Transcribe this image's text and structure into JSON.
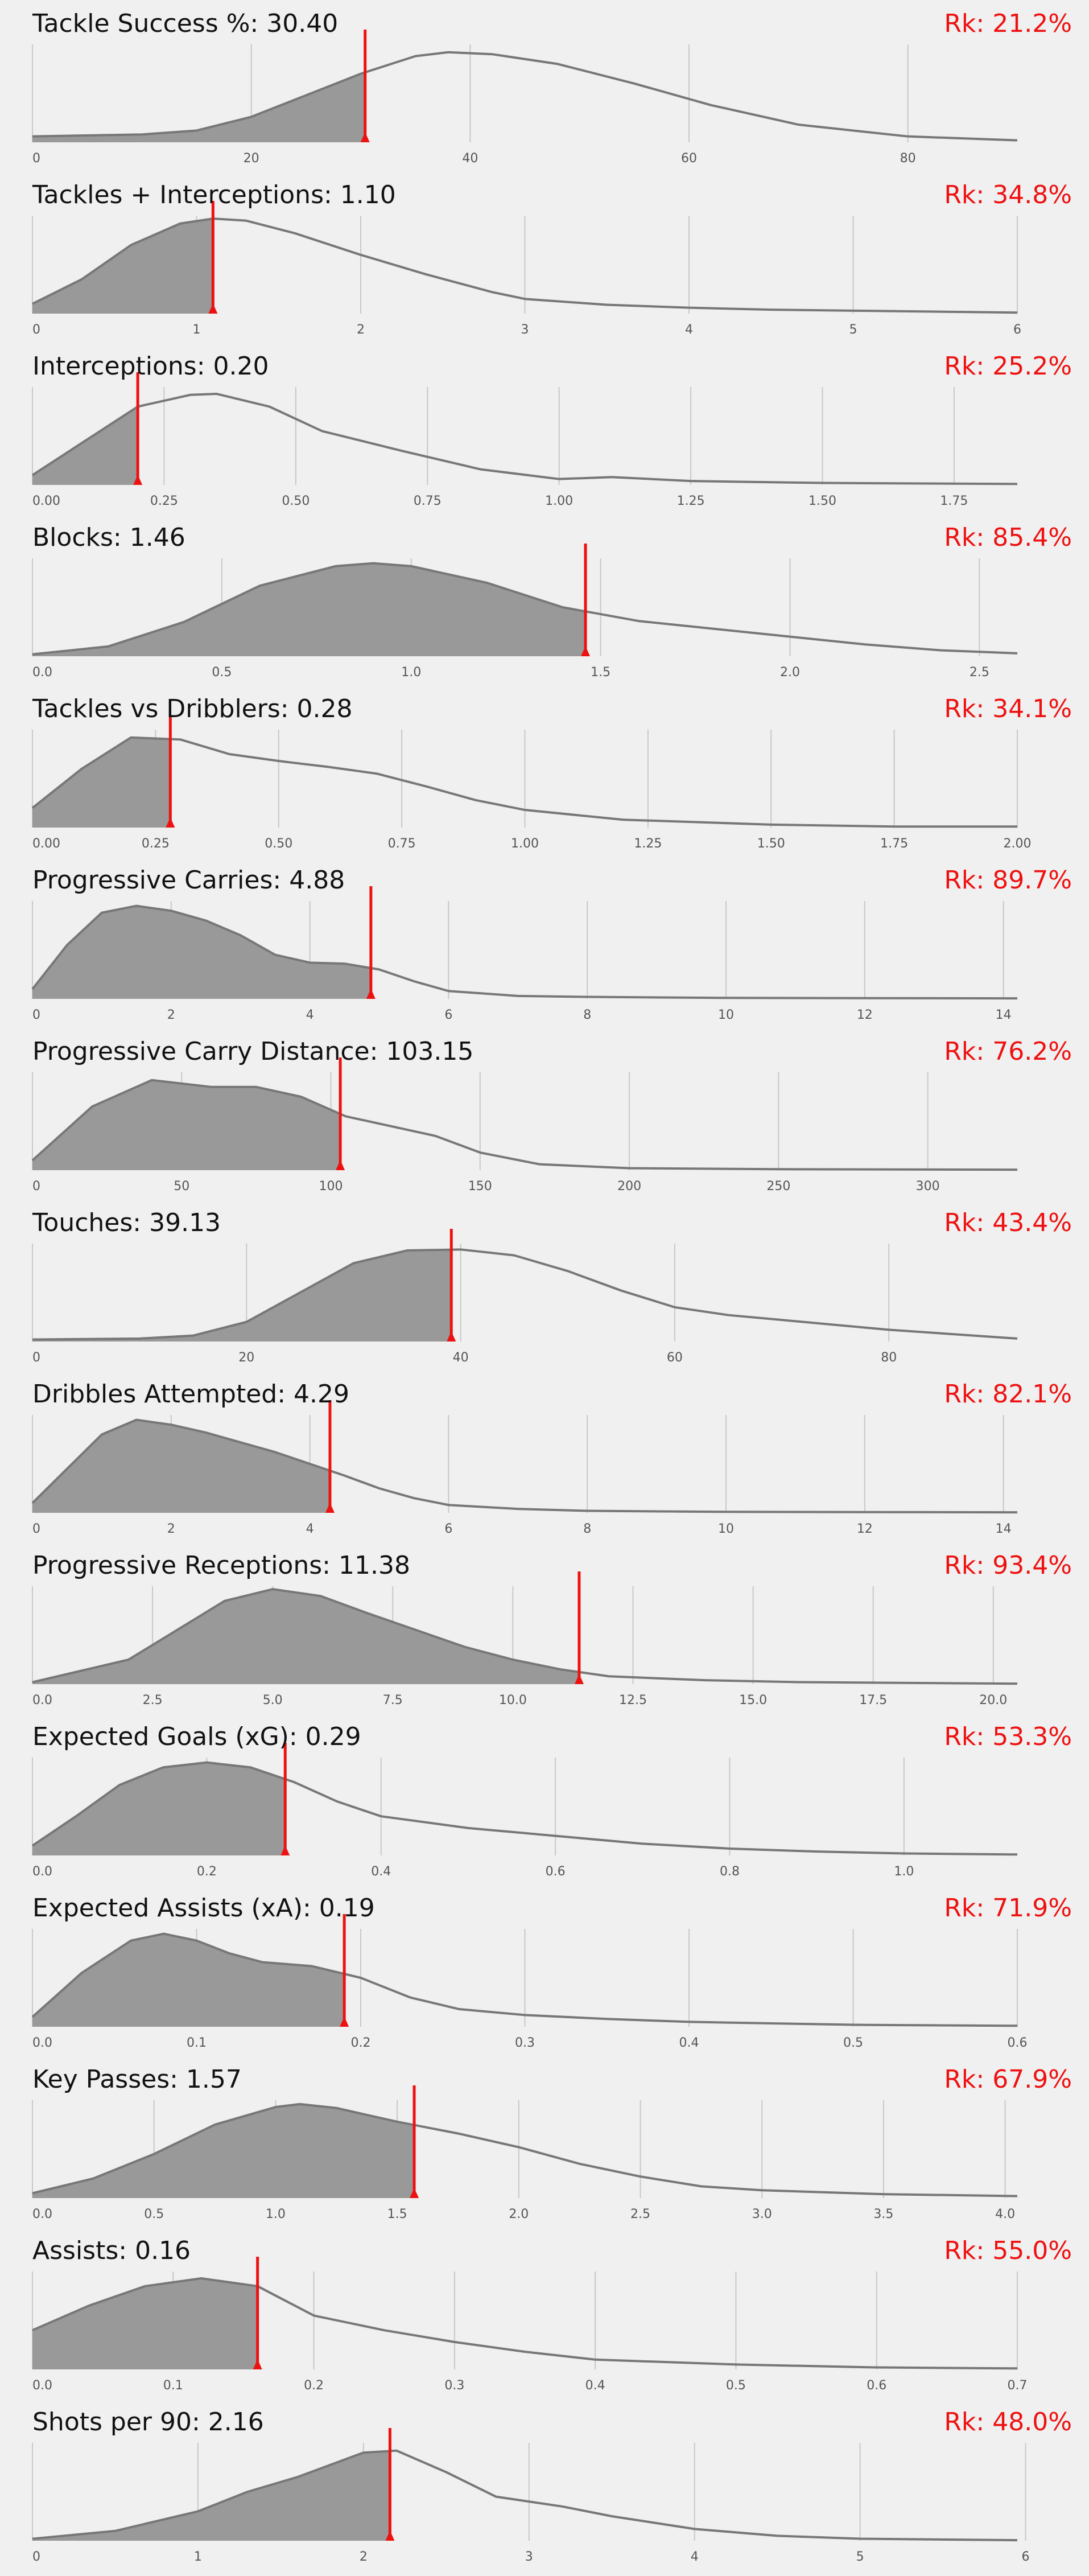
{
  "colors": {
    "background": "#f0f0f0",
    "fill": "#999999",
    "curve": "#777777",
    "grid": "#c8c8c8",
    "marker": "#ee1111",
    "text": "#111111",
    "tick": "#555555"
  },
  "chart_data": [
    {
      "type": "area",
      "title": "Tackle Success %: 30.40",
      "rank_label": "Rk: 21.2%",
      "value": 30.4,
      "xlim": [
        0,
        90
      ],
      "ticks": [
        0,
        20,
        40,
        60,
        80
      ],
      "tick_labels": [
        "0",
        "20",
        "40",
        "60",
        "80"
      ],
      "density": {
        "x": [
          0,
          10,
          15,
          20,
          25,
          30,
          35,
          38,
          42,
          48,
          55,
          62,
          70,
          80,
          90
        ],
        "y": [
          0.06,
          0.08,
          0.12,
          0.26,
          0.48,
          0.7,
          0.88,
          0.92,
          0.9,
          0.8,
          0.6,
          0.38,
          0.18,
          0.06,
          0.02
        ]
      }
    },
    {
      "type": "area",
      "title": "Tackles + Interceptions: 1.10",
      "rank_label": "Rk: 34.8%",
      "value": 1.1,
      "xlim": [
        0,
        6
      ],
      "ticks": [
        0,
        1,
        2,
        3,
        4,
        5,
        6
      ],
      "tick_labels": [
        "0",
        "1",
        "2",
        "3",
        "4",
        "5",
        "6"
      ],
      "density": {
        "x": [
          0,
          0.3,
          0.6,
          0.9,
          1.1,
          1.3,
          1.6,
          2.0,
          2.4,
          2.8,
          3.0,
          3.5,
          4.0,
          4.5,
          5.0,
          5.5,
          6.0
        ],
        "y": [
          0.1,
          0.35,
          0.7,
          0.92,
          0.97,
          0.95,
          0.82,
          0.6,
          0.4,
          0.22,
          0.15,
          0.09,
          0.06,
          0.04,
          0.03,
          0.02,
          0.01
        ]
      }
    },
    {
      "type": "area",
      "title": "Interceptions: 0.20",
      "rank_label": "Rk: 25.2%",
      "value": 0.2,
      "xlim": [
        0,
        1.87
      ],
      "ticks": [
        0,
        0.25,
        0.5,
        0.75,
        1.0,
        1.25,
        1.5,
        1.75
      ],
      "tick_labels": [
        "0.00",
        "0.25",
        "0.50",
        "0.75",
        "1.00",
        "1.25",
        "1.50",
        "1.75"
      ],
      "density": {
        "x": [
          0,
          0.1,
          0.2,
          0.3,
          0.35,
          0.45,
          0.55,
          0.7,
          0.85,
          1.0,
          1.1,
          1.25,
          1.5,
          1.87
        ],
        "y": [
          0.1,
          0.45,
          0.8,
          0.92,
          0.93,
          0.8,
          0.55,
          0.35,
          0.16,
          0.06,
          0.08,
          0.04,
          0.02,
          0.01
        ]
      }
    },
    {
      "type": "area",
      "title": "Blocks: 1.46",
      "rank_label": "Rk: 85.4%",
      "value": 1.46,
      "xlim": [
        0,
        2.6
      ],
      "ticks": [
        0,
        0.5,
        1.0,
        1.5,
        2.0,
        2.5
      ],
      "tick_labels": [
        "0.0",
        "0.5",
        "1.0",
        "1.5",
        "2.0",
        "2.5"
      ],
      "density": {
        "x": [
          0,
          0.2,
          0.4,
          0.6,
          0.8,
          0.9,
          1.0,
          1.2,
          1.4,
          1.6,
          1.8,
          2.0,
          2.2,
          2.4,
          2.6
        ],
        "y": [
          0.02,
          0.1,
          0.35,
          0.72,
          0.92,
          0.95,
          0.92,
          0.75,
          0.5,
          0.36,
          0.28,
          0.2,
          0.12,
          0.06,
          0.03
        ]
      }
    },
    {
      "type": "area",
      "title": "Tackles vs Dribblers: 0.28",
      "rank_label": "Rk: 34.1%",
      "value": 0.28,
      "xlim": [
        0,
        2.0
      ],
      "ticks": [
        0,
        0.25,
        0.5,
        0.75,
        1.0,
        1.25,
        1.5,
        1.75,
        2.0
      ],
      "tick_labels": [
        "0.00",
        "0.25",
        "0.50",
        "0.75",
        "1.00",
        "1.25",
        "1.50",
        "1.75",
        "2.00"
      ],
      "density": {
        "x": [
          0,
          0.1,
          0.2,
          0.3,
          0.4,
          0.5,
          0.6,
          0.7,
          0.8,
          0.9,
          1.0,
          1.2,
          1.5,
          1.75,
          2.0
        ],
        "y": [
          0.2,
          0.6,
          0.92,
          0.9,
          0.75,
          0.68,
          0.62,
          0.55,
          0.42,
          0.28,
          0.18,
          0.08,
          0.03,
          0.01,
          0.01
        ]
      }
    },
    {
      "type": "area",
      "title": "Progressive Carries: 4.88",
      "rank_label": "Rk: 89.7%",
      "value": 4.88,
      "xlim": [
        0,
        14.2
      ],
      "ticks": [
        0,
        2,
        4,
        6,
        8,
        10,
        12,
        14
      ],
      "tick_labels": [
        "0",
        "2",
        "4",
        "6",
        "8",
        "10",
        "12",
        "14"
      ],
      "density": {
        "x": [
          0,
          0.5,
          1.0,
          1.5,
          2.0,
          2.5,
          3.0,
          3.5,
          4.0,
          4.5,
          5.0,
          5.5,
          6.0,
          7.0,
          8.0,
          10.0,
          14.2
        ],
        "y": [
          0.1,
          0.55,
          0.88,
          0.95,
          0.9,
          0.8,
          0.65,
          0.45,
          0.37,
          0.36,
          0.3,
          0.18,
          0.08,
          0.03,
          0.02,
          0.01,
          0.005
        ]
      }
    },
    {
      "type": "area",
      "title": "Progressive Carry Distance: 103.15",
      "rank_label": "Rk: 76.2%",
      "value": 103.15,
      "xlim": [
        0,
        330
      ],
      "ticks": [
        0,
        50,
        100,
        150,
        200,
        250,
        300
      ],
      "tick_labels": [
        "0",
        "50",
        "100",
        "150",
        "200",
        "250",
        "300"
      ],
      "density": {
        "x": [
          0,
          20,
          40,
          60,
          75,
          90,
          105,
          120,
          135,
          150,
          170,
          200,
          250,
          330
        ],
        "y": [
          0.1,
          0.65,
          0.92,
          0.85,
          0.85,
          0.75,
          0.55,
          0.45,
          0.35,
          0.18,
          0.06,
          0.02,
          0.01,
          0.005
        ]
      }
    },
    {
      "type": "area",
      "title": "Touches: 39.13",
      "rank_label": "Rk: 43.4%",
      "value": 39.13,
      "xlim": [
        0,
        92
      ],
      "ticks": [
        0,
        20,
        40,
        60,
        80
      ],
      "tick_labels": [
        "0",
        "20",
        "40",
        "60",
        "80"
      ],
      "density": {
        "x": [
          0,
          10,
          15,
          20,
          25,
          30,
          35,
          40,
          45,
          50,
          55,
          60,
          65,
          70,
          80,
          92
        ],
        "y": [
          0.02,
          0.03,
          0.06,
          0.2,
          0.5,
          0.8,
          0.93,
          0.94,
          0.88,
          0.72,
          0.52,
          0.35,
          0.27,
          0.22,
          0.12,
          0.03
        ]
      }
    },
    {
      "type": "area",
      "title": "Dribbles Attempted: 4.29",
      "rank_label": "Rk: 82.1%",
      "value": 4.29,
      "xlim": [
        0,
        14.2
      ],
      "ticks": [
        0,
        2,
        4,
        6,
        8,
        10,
        12,
        14
      ],
      "tick_labels": [
        "0",
        "2",
        "4",
        "6",
        "8",
        "10",
        "12",
        "14"
      ],
      "density": {
        "x": [
          0,
          0.5,
          1.0,
          1.5,
          2.0,
          2.5,
          3.0,
          3.5,
          4.0,
          4.5,
          5.0,
          5.5,
          6.0,
          7.0,
          8.0,
          10.0,
          14.2
        ],
        "y": [
          0.1,
          0.45,
          0.8,
          0.95,
          0.9,
          0.82,
          0.72,
          0.62,
          0.5,
          0.38,
          0.25,
          0.15,
          0.08,
          0.04,
          0.02,
          0.01,
          0.005
        ]
      }
    },
    {
      "type": "area",
      "title": "Progressive Receptions: 11.38",
      "rank_label": "Rk: 93.4%",
      "value": 11.38,
      "xlim": [
        0,
        20.5
      ],
      "ticks": [
        0,
        2.5,
        5.0,
        7.5,
        10.0,
        12.5,
        15.0,
        17.5,
        20.0
      ],
      "tick_labels": [
        "0.0",
        "2.5",
        "5.0",
        "7.5",
        "10.0",
        "12.5",
        "15.0",
        "17.5",
        "20.0"
      ],
      "density": {
        "x": [
          0,
          2,
          3,
          4,
          5,
          6,
          7,
          8,
          9,
          10,
          11,
          12,
          14,
          16,
          20.5
        ],
        "y": [
          0.02,
          0.25,
          0.55,
          0.85,
          0.97,
          0.9,
          0.72,
          0.55,
          0.38,
          0.25,
          0.15,
          0.08,
          0.04,
          0.02,
          0.005
        ]
      }
    },
    {
      "type": "area",
      "title": "Expected Goals (xG): 0.29",
      "rank_label": "Rk: 53.3%",
      "value": 0.29,
      "xlim": [
        0,
        1.13
      ],
      "ticks": [
        0,
        0.2,
        0.4,
        0.6,
        0.8,
        1.0
      ],
      "tick_labels": [
        "0.0",
        "0.2",
        "0.4",
        "0.6",
        "0.8",
        "1.0"
      ],
      "density": {
        "x": [
          0,
          0.05,
          0.1,
          0.15,
          0.2,
          0.25,
          0.3,
          0.35,
          0.4,
          0.5,
          0.6,
          0.7,
          0.8,
          0.9,
          1.0,
          1.13
        ],
        "y": [
          0.1,
          0.4,
          0.72,
          0.9,
          0.95,
          0.9,
          0.75,
          0.55,
          0.4,
          0.28,
          0.2,
          0.12,
          0.07,
          0.04,
          0.02,
          0.01
        ]
      }
    },
    {
      "type": "area",
      "title": "Expected Assists (xA): 0.19",
      "rank_label": "Rk: 71.9%",
      "value": 0.19,
      "xlim": [
        0,
        0.6
      ],
      "ticks": [
        0,
        0.1,
        0.2,
        0.3,
        0.4,
        0.5,
        0.6
      ],
      "tick_labels": [
        "0.0",
        "0.1",
        "0.2",
        "0.3",
        "0.4",
        "0.5",
        "0.6"
      ],
      "density": {
        "x": [
          0,
          0.03,
          0.06,
          0.08,
          0.1,
          0.12,
          0.14,
          0.17,
          0.2,
          0.23,
          0.26,
          0.3,
          0.35,
          0.4,
          0.5,
          0.6
        ],
        "y": [
          0.1,
          0.55,
          0.88,
          0.95,
          0.88,
          0.75,
          0.66,
          0.62,
          0.5,
          0.3,
          0.18,
          0.12,
          0.08,
          0.05,
          0.02,
          0.01
        ]
      }
    },
    {
      "type": "area",
      "title": "Key Passes: 1.57",
      "rank_label": "Rk: 67.9%",
      "value": 1.57,
      "xlim": [
        0,
        4.05
      ],
      "ticks": [
        0,
        0.5,
        1.0,
        1.5,
        2.0,
        2.5,
        3.0,
        3.5,
        4.0
      ],
      "tick_labels": [
        "0.0",
        "0.5",
        "1.0",
        "1.5",
        "2.0",
        "2.5",
        "3.0",
        "3.5",
        "4.0"
      ],
      "density": {
        "x": [
          0,
          0.25,
          0.5,
          0.75,
          1.0,
          1.1,
          1.25,
          1.5,
          1.75,
          2.0,
          2.25,
          2.5,
          2.75,
          3.0,
          3.5,
          4.05
        ],
        "y": [
          0.05,
          0.2,
          0.45,
          0.75,
          0.93,
          0.96,
          0.92,
          0.78,
          0.66,
          0.52,
          0.35,
          0.22,
          0.12,
          0.08,
          0.04,
          0.02
        ]
      }
    },
    {
      "type": "area",
      "title": "Assists: 0.16",
      "rank_label": "Rk: 55.0%",
      "value": 0.16,
      "xlim": [
        0,
        0.7
      ],
      "ticks": [
        0,
        0.1,
        0.2,
        0.3,
        0.4,
        0.5,
        0.6,
        0.7
      ],
      "tick_labels": [
        "0.0",
        "0.1",
        "0.2",
        "0.3",
        "0.4",
        "0.5",
        "0.6",
        "0.7"
      ],
      "density": {
        "x": [
          0,
          0.04,
          0.08,
          0.12,
          0.16,
          0.2,
          0.25,
          0.3,
          0.35,
          0.4,
          0.5,
          0.6,
          0.7
        ],
        "y": [
          0.4,
          0.65,
          0.85,
          0.93,
          0.85,
          0.55,
          0.4,
          0.28,
          0.18,
          0.1,
          0.05,
          0.02,
          0.01
        ]
      }
    },
    {
      "type": "area",
      "title": "Shots per 90: 2.16",
      "rank_label": "Rk: 48.0%",
      "value": 2.16,
      "xlim": [
        0,
        5.95
      ],
      "ticks": [
        0,
        1,
        2,
        3,
        4,
        5,
        6
      ],
      "tick_labels": [
        "0",
        "1",
        "2",
        "3",
        "4",
        "5",
        "6"
      ],
      "density": {
        "x": [
          0,
          0.5,
          1.0,
          1.3,
          1.6,
          2.0,
          2.2,
          2.5,
          2.8,
          3.2,
          3.5,
          4.0,
          4.5,
          5.0,
          5.95
        ],
        "y": [
          0.02,
          0.1,
          0.3,
          0.5,
          0.65,
          0.9,
          0.92,
          0.7,
          0.45,
          0.35,
          0.25,
          0.12,
          0.05,
          0.02,
          0.005
        ]
      }
    }
  ]
}
